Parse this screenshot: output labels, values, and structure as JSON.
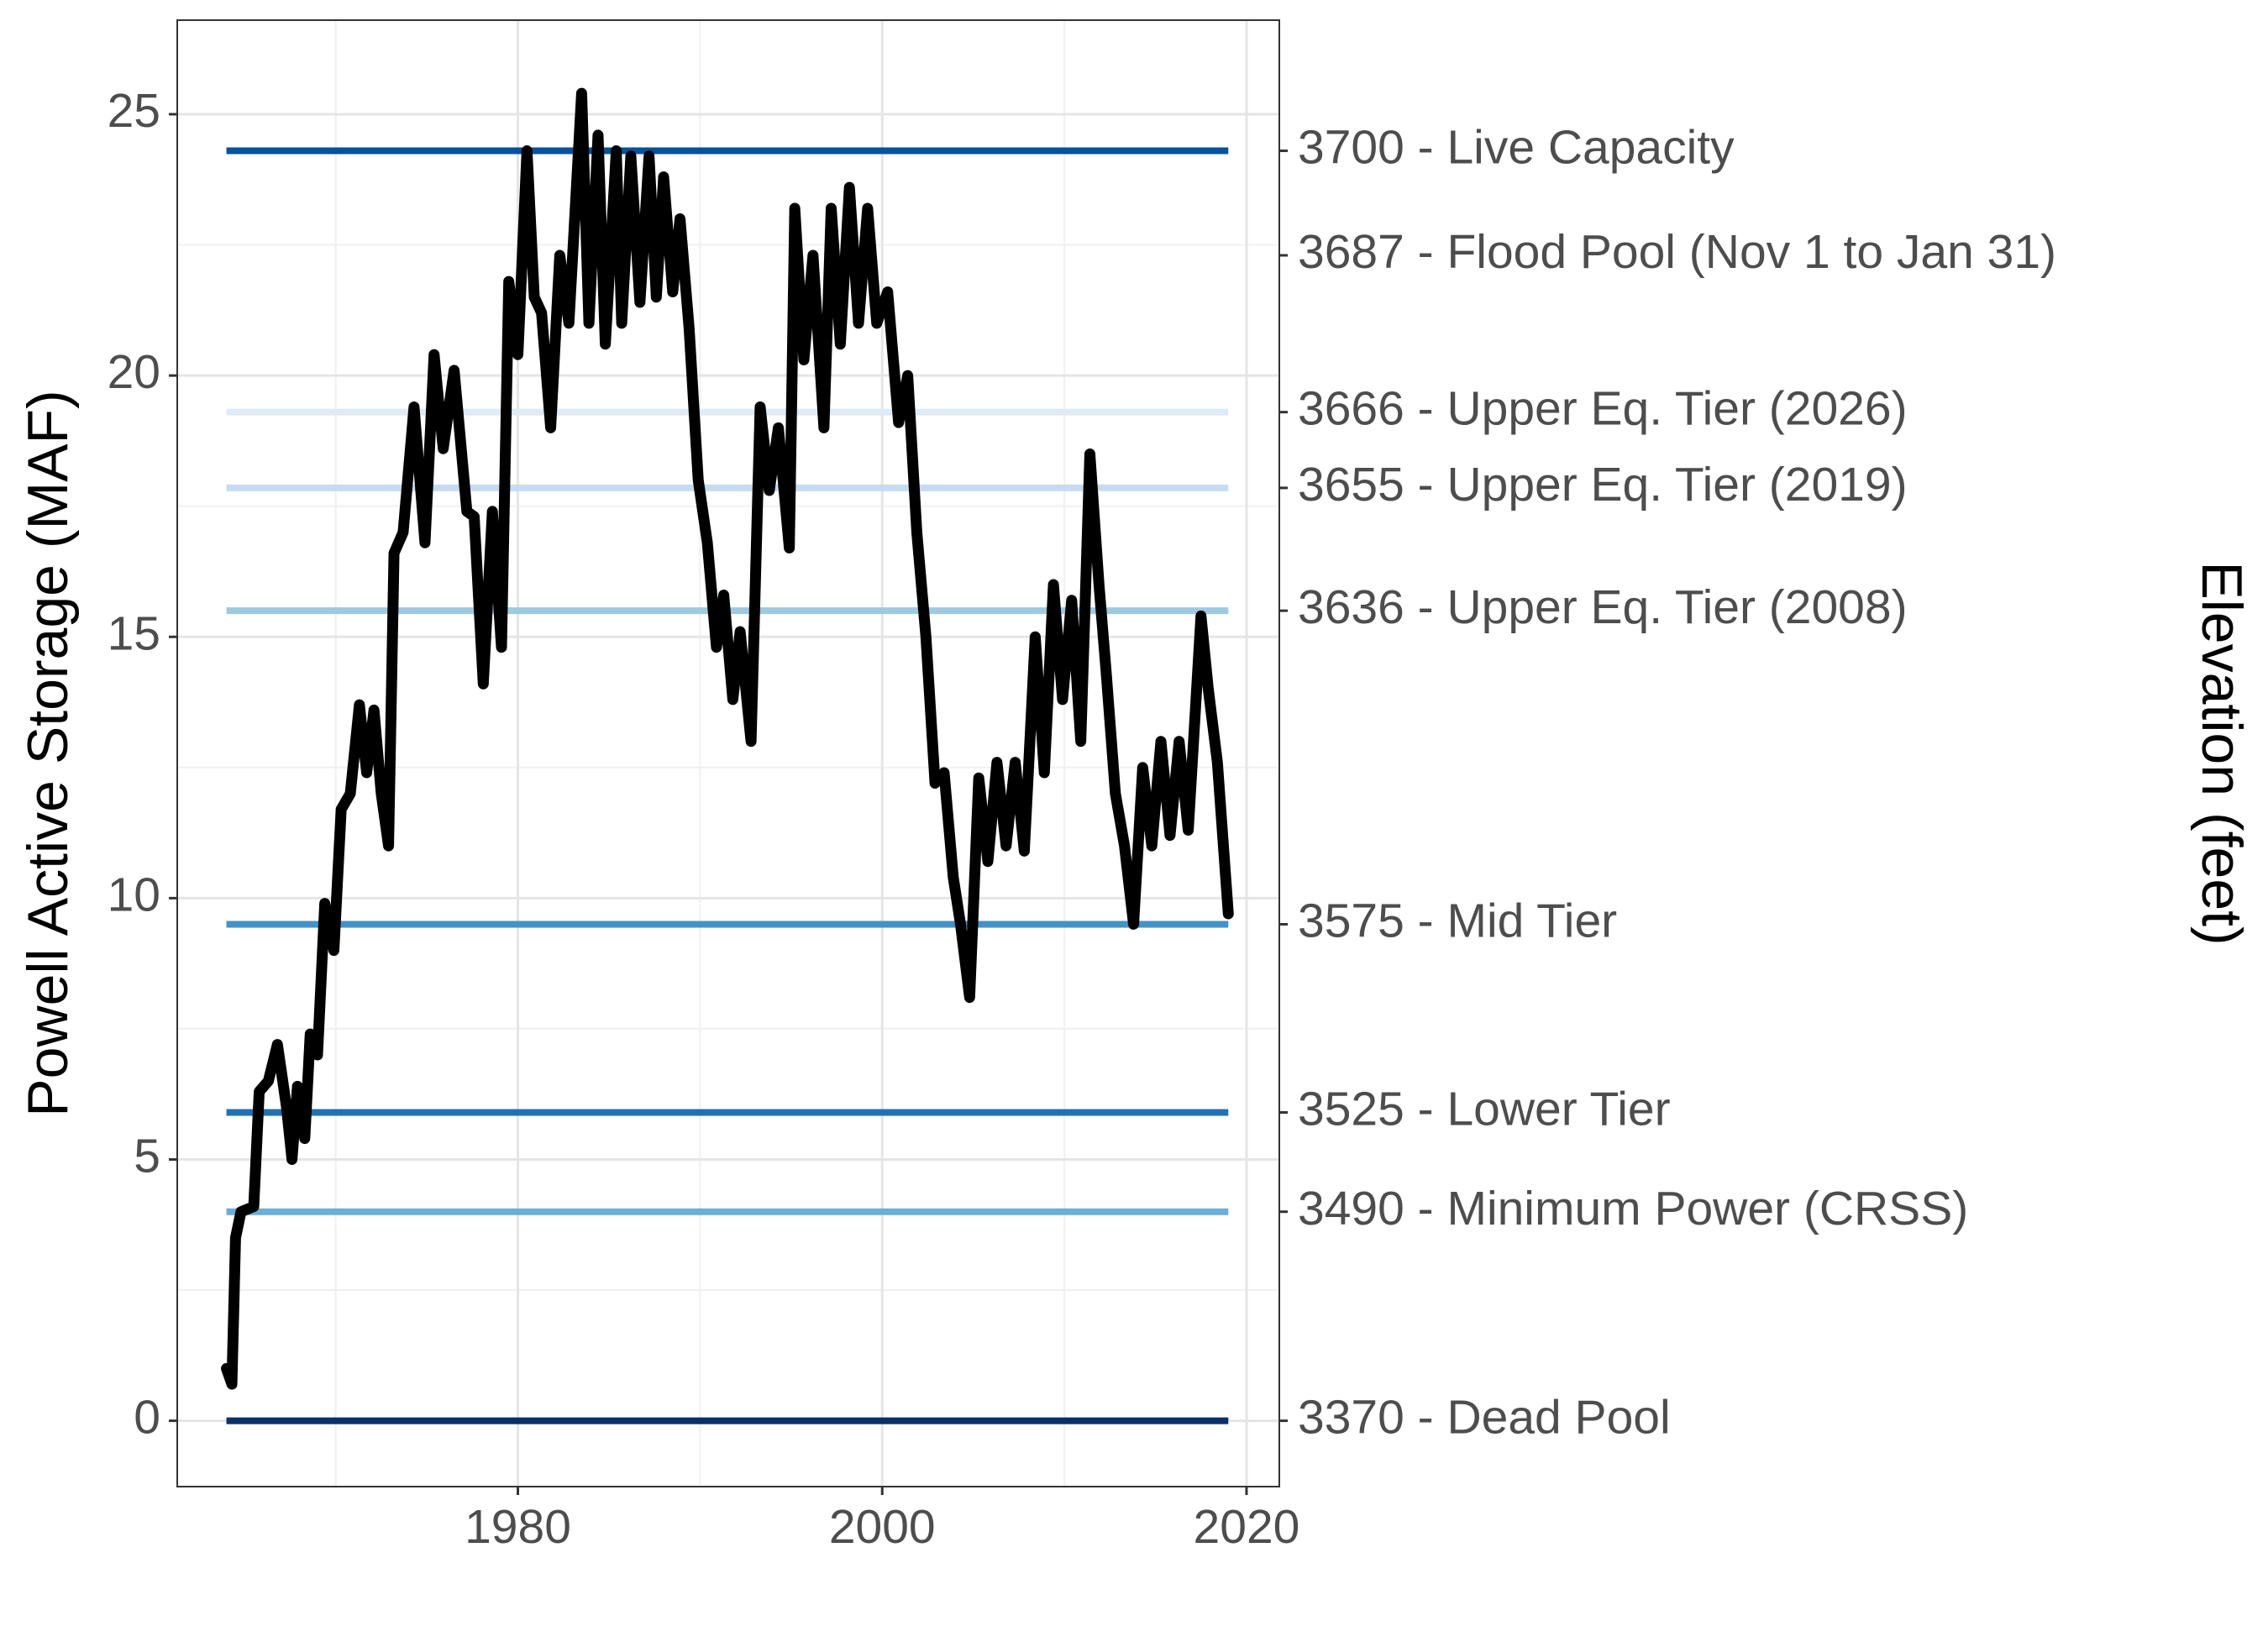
{
  "chart_data": {
    "type": "line",
    "y_label": "Powell Active Storage (MAF)",
    "y2_label": "Elevation (feet)",
    "xlim": [
      1961.3,
      2021.8
    ],
    "xticks": [
      1980,
      2000,
      2020
    ],
    "xticks_minor": [
      1970,
      1990,
      2010
    ],
    "ylim": [
      -1.26,
      26.8
    ],
    "yticks": [
      0,
      5,
      10,
      15,
      20,
      25
    ],
    "yticks_minor": [
      2.5,
      7.5,
      12.5,
      17.5,
      22.5
    ],
    "y2lim": [
      -1.26,
      26.8
    ],
    "y2ticks": [
      {
        "value": 24.3,
        "label": "3700 - Live Capacity",
        "line_color": "#08519c"
      },
      {
        "value": 22.3,
        "label": "3687 - Flood Pool (Nov 1 to Jan 31)"
      },
      {
        "value": 19.3,
        "label": "3666 - Upper Eq. Tier (2026)",
        "line_color": "#deebf7"
      },
      {
        "value": 17.85,
        "label": "3655 - Upper Eq. Tier (2019)",
        "line_color": "#c6dbef"
      },
      {
        "value": 15.5,
        "label": "3636 - Upper Eq. Tier (2008)",
        "line_color": "#9ecae1"
      },
      {
        "value": 9.5,
        "label": "3575 - Mid Tier",
        "line_color": "#4292c6"
      },
      {
        "value": 5.9,
        "label": "3525 - Lower Tier",
        "line_color": "#2171b5"
      },
      {
        "value": 4.0,
        "label": "3490 - Minimum Power (CRSS)",
        "line_color": "#6baed6"
      },
      {
        "value": 0,
        "label": "3370 - Dead Pool",
        "line_color": "#08306b"
      }
    ],
    "grid": true,
    "series": [
      {
        "color": "#000000",
        "x": [
          1964.0,
          1964.3,
          1964.5,
          1964.8,
          1965.5,
          1965.8,
          1966.3,
          1966.8,
          1967.3,
          1967.6,
          1967.9,
          1968.3,
          1968.6,
          1969.0,
          1969.4,
          1969.9,
          1970.3,
          1970.8,
          1971.3,
          1971.7,
          1972.1,
          1972.5,
          1972.9,
          1973.2,
          1973.7,
          1974.3,
          1974.9,
          1975.4,
          1975.9,
          1976.5,
          1977.2,
          1977.6,
          1978.1,
          1978.6,
          1979.1,
          1979.5,
          1980.0,
          1980.5,
          1980.9,
          1981.3,
          1981.8,
          1982.3,
          1982.8,
          1983.5,
          1983.9,
          1984.4,
          1984.8,
          1985.4,
          1985.7,
          1986.2,
          1986.7,
          1987.2,
          1987.6,
          1988.0,
          1988.5,
          1988.9,
          1989.4,
          1989.9,
          1990.4,
          1990.9,
          1991.3,
          1991.8,
          1992.2,
          1992.8,
          1993.3,
          1993.8,
          1994.3,
          1994.9,
          1995.2,
          1995.7,
          1996.2,
          1996.8,
          1997.2,
          1997.7,
          1998.2,
          1998.7,
          1999.2,
          1999.7,
          2000.3,
          2000.9,
          2001.4,
          2001.9,
          2002.4,
          2002.9,
          2003.4,
          2003.9,
          2004.3,
          2004.8,
          2005.3,
          2005.8,
          2006.3,
          2006.8,
          2007.3,
          2007.8,
          2008.4,
          2008.9,
          2009.4,
          2009.9,
          2010.4,
          2010.9,
          2011.4,
          2011.9,
          2012.3,
          2012.8,
          2013.3,
          2013.8,
          2014.3,
          2014.8,
          2015.3,
          2015.8,
          2016.3,
          2016.8,
          2017.5,
          2017.9,
          2018.4,
          2019.0
        ],
        "values": [
          1.0,
          0.7,
          3.5,
          4.0,
          4.1,
          6.3,
          6.5,
          7.2,
          6.0,
          5.0,
          6.4,
          5.4,
          7.4,
          7.0,
          9.9,
          9.0,
          11.7,
          12.0,
          13.7,
          12.4,
          13.6,
          12.0,
          11.0,
          16.6,
          17.0,
          19.4,
          16.8,
          20.4,
          18.6,
          20.1,
          17.4,
          17.3,
          14.1,
          17.4,
          14.8,
          21.8,
          20.4,
          24.3,
          21.5,
          21.2,
          19.0,
          22.3,
          21.0,
          25.4,
          21.0,
          24.6,
          20.6,
          24.3,
          21.0,
          24.2,
          21.4,
          24.2,
          21.5,
          23.8,
          21.6,
          23.0,
          20.9,
          18.0,
          16.8,
          14.8,
          15.8,
          13.8,
          15.1,
          13.0,
          19.4,
          17.8,
          19.0,
          16.7,
          23.2,
          20.3,
          22.3,
          19.0,
          23.2,
          20.6,
          23.6,
          21.0,
          23.2,
          21.0,
          21.6,
          19.1,
          20.0,
          17.0,
          15.0,
          12.2,
          12.4,
          10.4,
          9.5,
          8.1,
          12.3,
          10.7,
          12.6,
          11.0,
          12.6,
          10.9,
          15.0,
          12.4,
          16.0,
          13.8,
          15.7,
          13.0,
          18.5,
          16.0,
          14.3,
          12.0,
          11.0,
          9.5,
          12.5,
          11.0,
          13.0,
          11.2,
          13.0,
          11.3,
          15.4,
          14.0,
          12.6,
          9.7
        ]
      }
    ]
  }
}
